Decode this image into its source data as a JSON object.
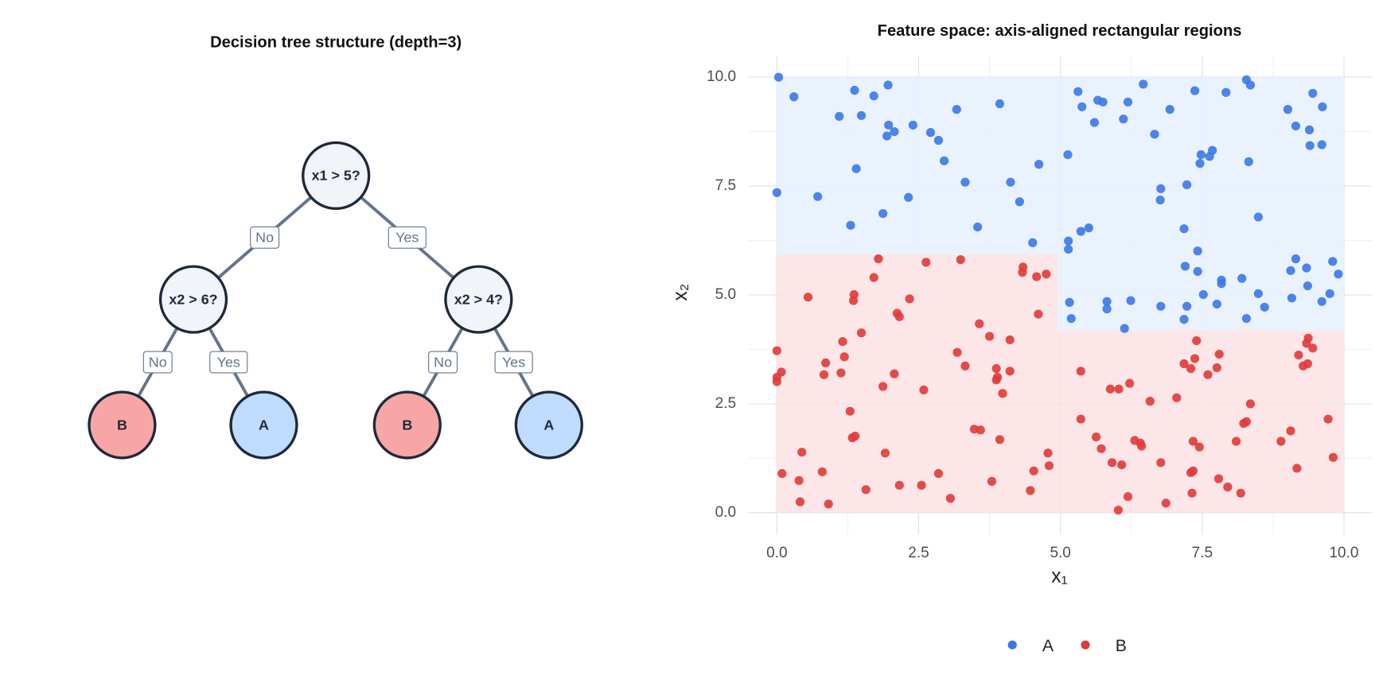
{
  "diagram": {
    "title": "Decision tree structure (depth=3)",
    "nodes": [
      "x1 > 5?",
      "x2 > 6?",
      "x2 > 4?",
      "B",
      "A",
      "B",
      "A"
    ],
    "edge_labels": [
      "No",
      "Yes",
      "No",
      "Yes",
      "No",
      "Yes"
    ]
  },
  "chart_data": {
    "type": "scatter",
    "title": "Feature space: axis-aligned rectangular regions",
    "xlabel": "x₁",
    "ylabel": "x₂",
    "xlim": [
      -0.5,
      10.5
    ],
    "ylim": [
      -0.5,
      10.5
    ],
    "xticks": [
      {
        "value": 0,
        "label": "0.0"
      },
      2.5,
      {
        "value": 5,
        "label": "5.0"
      },
      7.5,
      {
        "value": 10,
        "label": "10.0"
      }
    ],
    "yticks": [
      {
        "value": 0,
        "label": "0.0"
      },
      2.5,
      {
        "value": 5,
        "label": "5.0"
      },
      7.5,
      {
        "value": 10,
        "label": "10.0"
      }
    ],
    "grid": true,
    "legend": "bottom",
    "series": [
      {
        "name": "A",
        "color": "#3b78e7",
        "region_color": "#e6f0fe",
        "regions": [
          [
            0,
            4.95,
            5.93,
            10
          ],
          [
            4.95,
            10,
            4.19,
            10
          ]
        ],
        "x": [
          0.03,
          0.3,
          0,
          0.72,
          1.1,
          1.37,
          1.49,
          1.71,
          1.96,
          1.97,
          1.94,
          2.07,
          2.4,
          1.4,
          1.3,
          1.87,
          2.32,
          2.71,
          2.85,
          2.95,
          3.17,
          3.32,
          3.54,
          3.93,
          4.12,
          4.28,
          4.51,
          4.62,
          5.13,
          5.14,
          5.14,
          5.31,
          5.38,
          5.36,
          5.5,
          5.66,
          5.6,
          5.75,
          6.19,
          6.11,
          6.46,
          6.66,
          6.93,
          6.77,
          6.76,
          7.23,
          7.18,
          7.37,
          7.48,
          7.46,
          7.63,
          7.68,
          7.92,
          8.28,
          8.35,
          8.32,
          8.49,
          9.01,
          9.45,
          9.15,
          9.39,
          9.4,
          9.62,
          9.61,
          7.2,
          7.42,
          7.42,
          7.84,
          7.84,
          8.2,
          7.52,
          7.76,
          7.23,
          6.77,
          8.28,
          8.49,
          8.6,
          9.15,
          9.06,
          9.34,
          9.36,
          9.08,
          9.61,
          9.75,
          9.8,
          9.9,
          5.16,
          5.19,
          5.82,
          5.82,
          6.24,
          6.13,
          7.18
        ],
        "y": [
          10,
          9.55,
          7.35,
          7.26,
          9.1,
          9.7,
          9.12,
          9.57,
          9.82,
          8.9,
          8.65,
          8.75,
          8.9,
          7.9,
          6.6,
          6.87,
          7.24,
          8.73,
          8.55,
          8.08,
          9.26,
          7.59,
          6.56,
          9.39,
          7.59,
          7.14,
          6.2,
          8,
          8.22,
          6.24,
          6.05,
          9.67,
          9.32,
          6.46,
          6.54,
          9.47,
          8.96,
          9.43,
          9.43,
          9.04,
          9.84,
          8.69,
          9.26,
          7.44,
          7.18,
          7.53,
          6.52,
          9.69,
          8.22,
          8.02,
          8.18,
          8.32,
          9.65,
          9.94,
          9.82,
          8.06,
          6.79,
          9.26,
          9.63,
          8.88,
          8.79,
          8.43,
          9.32,
          8.45,
          5.66,
          6.01,
          5.54,
          5.34,
          5.26,
          5.38,
          5.01,
          4.79,
          4.74,
          4.74,
          4.46,
          5.03,
          4.72,
          5.83,
          5.56,
          5.62,
          5.21,
          4.93,
          4.85,
          5.03,
          5.77,
          5.48,
          4.83,
          4.46,
          4.85,
          4.68,
          4.87,
          4.23,
          4.44
        ]
      },
      {
        "name": "B",
        "color": "#e03a3a",
        "region_color": "#fde2e4",
        "regions": [
          [
            0,
            4.95,
            0,
            5.93
          ],
          [
            4.95,
            10,
            0,
            4.19
          ]
        ],
        "x": [
          0,
          0.08,
          0,
          0,
          0.09,
          0.55,
          0.44,
          0.39,
          0.41,
          0.86,
          0.83,
          0.8,
          0.91,
          1.16,
          1.19,
          1.13,
          1.36,
          1.35,
          1.49,
          1.29,
          1.33,
          1.38,
          1.57,
          1.79,
          1.71,
          2.12,
          2.16,
          1.87,
          2.07,
          1.91,
          2.16,
          2.34,
          2.63,
          2.59,
          2.55,
          2.85,
          3.06,
          3.24,
          3.18,
          3.32,
          3.57,
          3.75,
          3.48,
          3.59,
          3.79,
          3.87,
          3.89,
          3.87,
          3.98,
          3.93,
          4.11,
          4.11,
          4.33,
          4.34,
          4.58,
          4.61,
          4.75,
          4.78,
          4.8,
          4.53,
          4.47,
          5.36,
          5.36,
          5.63,
          5.72,
          5.91,
          5.88,
          6.03,
          6.22,
          6.08,
          6.19,
          6.02,
          6.31,
          6.41,
          6.43,
          6.58,
          6.77,
          6.86,
          7.05,
          7.18,
          7.4,
          7.37,
          7.3,
          7.34,
          7.45,
          7.34,
          7.3,
          7.32,
          7.6,
          7.76,
          7.8,
          7.79,
          7.95,
          8.18,
          8.1,
          8.23,
          8.28,
          8.35,
          8.89,
          9.06,
          9.17,
          9.2,
          9.28,
          9.36,
          9.34,
          9.37,
          9.45,
          9.72,
          9.81
        ],
        "y": [
          3.72,
          3.23,
          3.11,
          3.01,
          0.9,
          4.95,
          1.39,
          0.74,
          0.25,
          3.44,
          3.17,
          0.94,
          0.2,
          3.93,
          3.58,
          3.21,
          5.01,
          4.87,
          4.13,
          2.33,
          1.72,
          1.76,
          0.53,
          5.83,
          5.4,
          4.58,
          4.5,
          2.9,
          3.19,
          1.37,
          0.63,
          4.91,
          5.75,
          2.82,
          0.63,
          0.9,
          0.33,
          5.81,
          3.68,
          3.37,
          4.34,
          4.05,
          1.92,
          1.9,
          0.72,
          3.31,
          3.11,
          3.05,
          2.74,
          1.68,
          3.97,
          3.25,
          5.52,
          5.64,
          5.42,
          4.56,
          5.48,
          1.37,
          1.08,
          0.96,
          0.51,
          3.25,
          2.15,
          1.74,
          1.47,
          1.15,
          2.84,
          2.84,
          2.97,
          1.1,
          0.37,
          0.06,
          1.66,
          1.6,
          1.53,
          2.56,
          1.15,
          0.22,
          2.64,
          3.42,
          3.95,
          3.54,
          3.31,
          1.64,
          1.51,
          0.96,
          0.92,
          0.45,
          3.17,
          3.33,
          3.64,
          0.78,
          0.59,
          0.45,
          1.64,
          2.05,
          2.09,
          2.5,
          1.64,
          1.88,
          1.02,
          3.62,
          3.37,
          3.42,
          3.89,
          4.01,
          3.78,
          2.15,
          1.27
        ]
      }
    ]
  }
}
